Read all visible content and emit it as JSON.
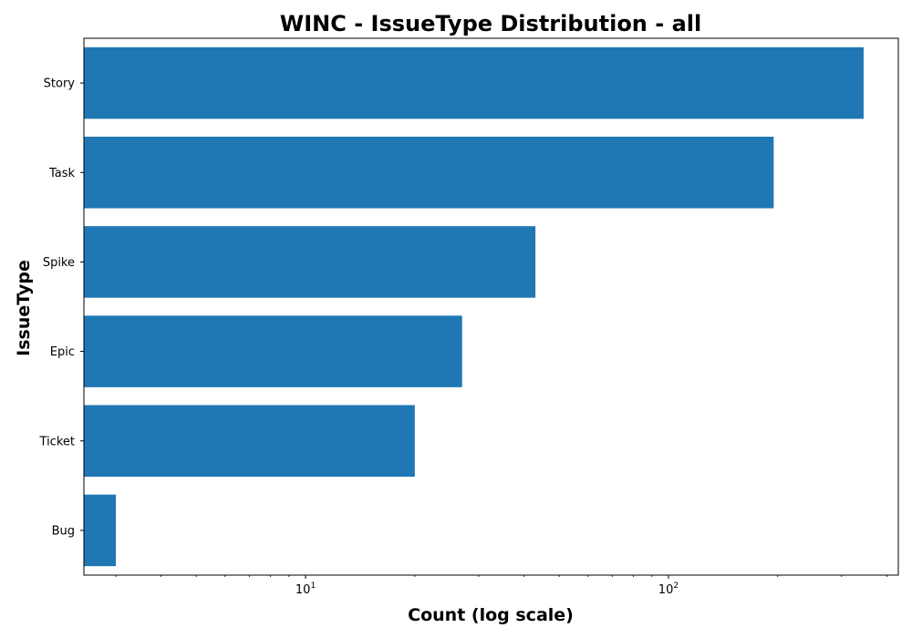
{
  "chart_data": {
    "type": "bar",
    "orientation": "horizontal",
    "title": "WINC - IssueType Distribution - all",
    "xlabel": "Count (log scale)",
    "ylabel": "IssueType",
    "x_scale": "log",
    "xlim": [
      2.45,
      430
    ],
    "x_ticks": [
      {
        "value": 10,
        "base": "10",
        "exponent": "1"
      },
      {
        "value": 100,
        "base": "10",
        "exponent": "2"
      }
    ],
    "categories": [
      "Bug",
      "Ticket",
      "Epic",
      "Spike",
      "Task",
      "Story"
    ],
    "values": [
      3,
      20,
      27,
      43,
      195,
      345
    ],
    "bar_color": "#1f77b4",
    "grid": false,
    "legend": "none"
  }
}
